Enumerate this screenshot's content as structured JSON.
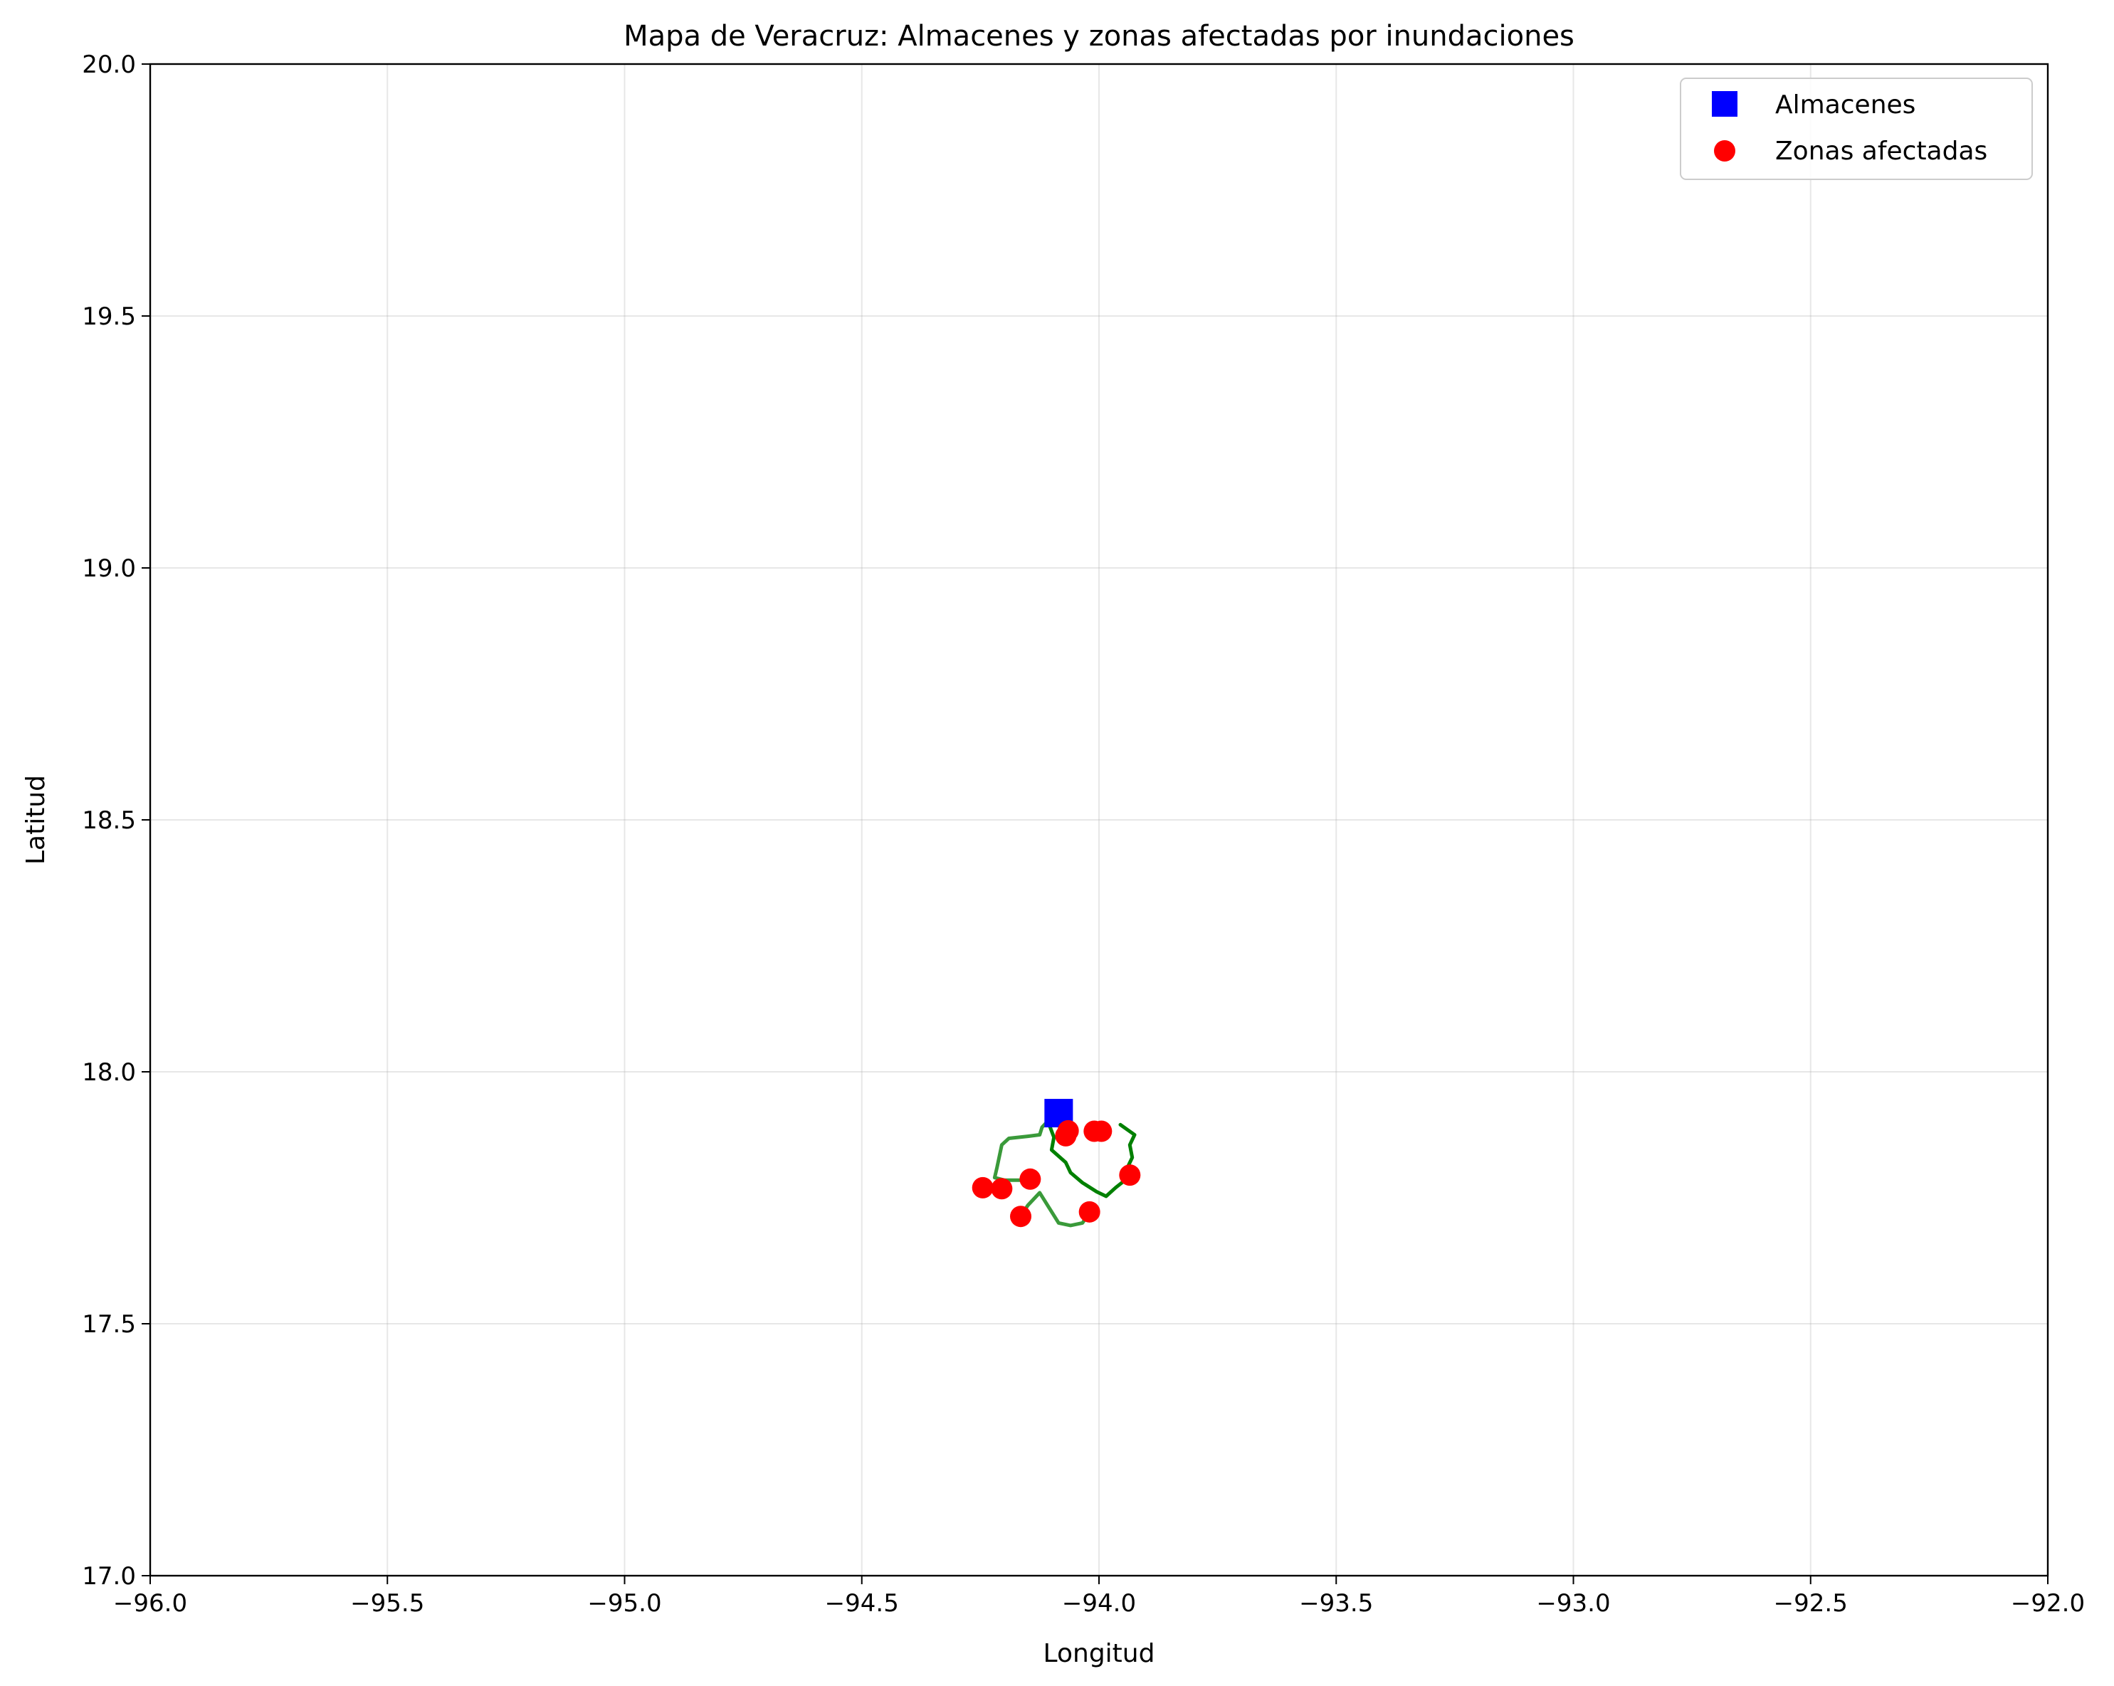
{
  "chart_data": {
    "type": "scatter",
    "title": "Mapa de Veracruz: Almacenes y zonas afectadas por inundaciones",
    "xlabel": "Longitud",
    "ylabel": "Latitud",
    "xlim": [
      -96.0,
      -92.0
    ],
    "ylim": [
      17.0,
      20.0
    ],
    "xticks": [
      -96.0,
      -95.5,
      -95.0,
      -94.5,
      -94.0,
      -93.5,
      -93.0,
      -92.5,
      -92.0
    ],
    "xtick_labels": [
      "−96.0",
      "−95.5",
      "−95.0",
      "−94.5",
      "−94.0",
      "−93.5",
      "−93.0",
      "−92.5",
      "−92.0"
    ],
    "yticks": [
      17.0,
      17.5,
      18.0,
      18.5,
      19.0,
      19.5,
      20.0
    ],
    "ytick_labels": [
      "17.0",
      "17.5",
      "18.0",
      "18.5",
      "19.0",
      "19.5",
      "20.0"
    ],
    "grid": true,
    "legend_position": "top-right",
    "series": [
      {
        "name": "Almacenes",
        "marker": "square",
        "color": "#0000ff",
        "points": [
          [
            -94.085,
            17.918
          ]
        ]
      },
      {
        "name": "Zonas afectadas",
        "marker": "circle",
        "color": "#ff0000",
        "points": [
          [
            -94.065,
            17.883
          ],
          [
            -94.07,
            17.873
          ],
          [
            -94.01,
            17.882
          ],
          [
            -93.995,
            17.882
          ],
          [
            -94.145,
            17.787
          ],
          [
            -94.245,
            17.77
          ],
          [
            -94.205,
            17.768
          ],
          [
            -93.935,
            17.795
          ],
          [
            -94.165,
            17.713
          ],
          [
            -94.02,
            17.722
          ]
        ]
      }
    ],
    "routes": [
      {
        "color": "#3a9a3a",
        "points": [
          [
            -94.1,
            17.91
          ],
          [
            -94.12,
            17.89
          ],
          [
            -94.125,
            17.875
          ],
          [
            -94.15,
            17.872
          ],
          [
            -94.19,
            17.868
          ],
          [
            -94.205,
            17.855
          ],
          [
            -94.215,
            17.81
          ],
          [
            -94.22,
            17.79
          ],
          [
            -94.2,
            17.785
          ],
          [
            -94.175,
            17.785
          ],
          [
            -94.155,
            17.785
          ]
        ]
      },
      {
        "color": "#3a9a3a",
        "points": [
          [
            -94.165,
            17.713
          ],
          [
            -94.15,
            17.735
          ],
          [
            -94.125,
            17.76
          ],
          [
            -94.105,
            17.73
          ],
          [
            -94.085,
            17.7
          ],
          [
            -94.06,
            17.695
          ],
          [
            -94.035,
            17.7
          ],
          [
            -94.02,
            17.72
          ]
        ]
      },
      {
        "color": "#008000",
        "points": [
          [
            -94.09,
            17.92
          ],
          [
            -94.105,
            17.895
          ],
          [
            -94.095,
            17.87
          ],
          [
            -94.1,
            17.845
          ],
          [
            -94.07,
            17.82
          ],
          [
            -94.06,
            17.8
          ],
          [
            -94.035,
            17.78
          ],
          [
            -94.005,
            17.762
          ],
          [
            -93.985,
            17.753
          ],
          [
            -93.965,
            17.77
          ],
          [
            -93.945,
            17.785
          ],
          [
            -93.94,
            17.81
          ],
          [
            -93.93,
            17.83
          ],
          [
            -93.935,
            17.855
          ],
          [
            -93.925,
            17.875
          ],
          [
            -93.955,
            17.895
          ]
        ]
      }
    ]
  }
}
